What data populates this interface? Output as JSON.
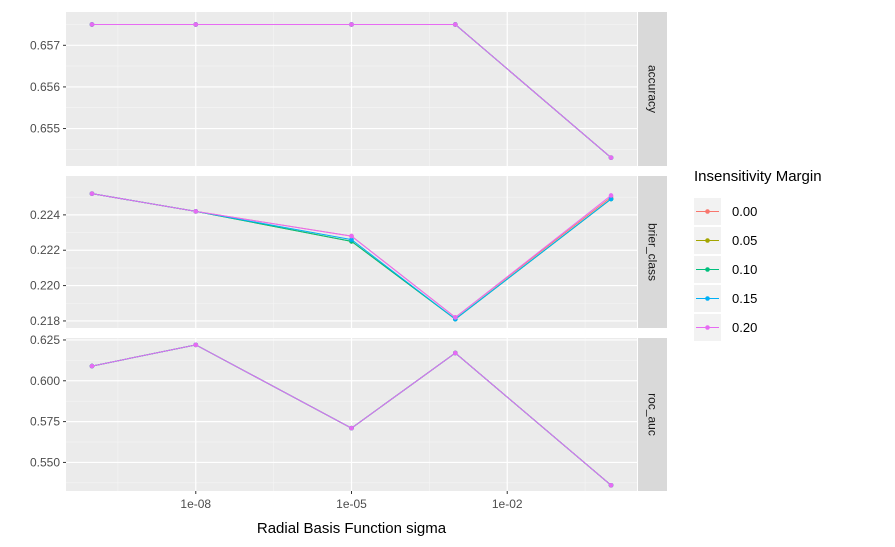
{
  "chart_data": {
    "type": "line",
    "xlabel": "Radial Basis Function sigma",
    "x_scale": "log10",
    "x": [
      1e-10,
      1e-08,
      1e-05,
      0.001,
      1
    ],
    "x_ticks": [
      {
        "value": 1e-08,
        "label": "1e-08"
      },
      {
        "value": 1e-05,
        "label": "1e-05"
      },
      {
        "value": 0.01,
        "label": "1e-02"
      }
    ],
    "legend": {
      "title": "Insensitivity Margin",
      "position": "right",
      "entries": [
        {
          "label": "0.00",
          "color": "#F8766D"
        },
        {
          "label": "0.05",
          "color": "#A3A500"
        },
        {
          "label": "0.10",
          "color": "#00BF7D"
        },
        {
          "label": "0.15",
          "color": "#00B0F6"
        },
        {
          "label": "0.20",
          "color": "#E76BF3"
        }
      ]
    },
    "grid": true,
    "facets": [
      {
        "strip": "accuracy",
        "ylim": [
          0.6541,
          0.6578
        ],
        "y_ticks": [
          {
            "value": 0.655,
            "label": "0.655"
          },
          {
            "value": 0.656,
            "label": "0.656"
          },
          {
            "value": 0.657,
            "label": "0.657"
          }
        ],
        "series": [
          {
            "name": "0.00",
            "values": [
              0.6575,
              0.6575,
              0.6575,
              0.6575,
              0.6543
            ]
          },
          {
            "name": "0.05",
            "values": [
              0.6575,
              0.6575,
              0.6575,
              0.6575,
              0.6543
            ]
          },
          {
            "name": "0.10",
            "values": [
              0.6575,
              0.6575,
              0.6575,
              0.6575,
              0.6543
            ]
          },
          {
            "name": "0.15",
            "values": [
              0.6575,
              0.6575,
              0.6575,
              0.6575,
              0.6543
            ]
          },
          {
            "name": "0.20",
            "values": [
              0.6575,
              0.6575,
              0.6575,
              0.6575,
              0.6543
            ]
          }
        ]
      },
      {
        "strip": "brier_class",
        "ylim": [
          0.2176,
          0.2262
        ],
        "y_ticks": [
          {
            "value": 0.218,
            "label": "0.218"
          },
          {
            "value": 0.22,
            "label": "0.220"
          },
          {
            "value": 0.222,
            "label": "0.222"
          },
          {
            "value": 0.224,
            "label": "0.224"
          }
        ],
        "series": [
          {
            "name": "0.00",
            "values": [
              0.2252,
              0.2242,
              0.2228,
              0.2182,
              0.225
            ]
          },
          {
            "name": "0.05",
            "values": [
              0.2252,
              0.2242,
              0.2225,
              0.2181,
              0.2249
            ]
          },
          {
            "name": "0.10",
            "values": [
              0.2252,
              0.2242,
              0.2225,
              0.2181,
              0.2249
            ]
          },
          {
            "name": "0.15",
            "values": [
              0.2252,
              0.2242,
              0.2226,
              0.2181,
              0.2249
            ]
          },
          {
            "name": "0.20",
            "values": [
              0.2252,
              0.2242,
              0.2228,
              0.2182,
              0.2251
            ]
          }
        ]
      },
      {
        "strip": "roc_auc",
        "ylim": [
          0.5325,
          0.6262
        ],
        "y_ticks": [
          {
            "value": 0.55,
            "label": "0.550"
          },
          {
            "value": 0.575,
            "label": "0.575"
          },
          {
            "value": 0.6,
            "label": "0.600"
          },
          {
            "value": 0.625,
            "label": "0.625"
          }
        ],
        "series": [
          {
            "name": "0.00",
            "values": [
              0.609,
              0.622,
              0.571,
              0.617,
              0.536
            ]
          },
          {
            "name": "0.05",
            "values": [
              0.609,
              0.622,
              0.571,
              0.617,
              0.536
            ]
          },
          {
            "name": "0.10",
            "values": [
              0.609,
              0.622,
              0.571,
              0.617,
              0.536
            ]
          },
          {
            "name": "0.15",
            "values": [
              0.609,
              0.622,
              0.571,
              0.617,
              0.536
            ]
          },
          {
            "name": "0.20",
            "values": [
              0.609,
              0.622,
              0.571,
              0.617,
              0.536
            ]
          }
        ]
      }
    ]
  }
}
